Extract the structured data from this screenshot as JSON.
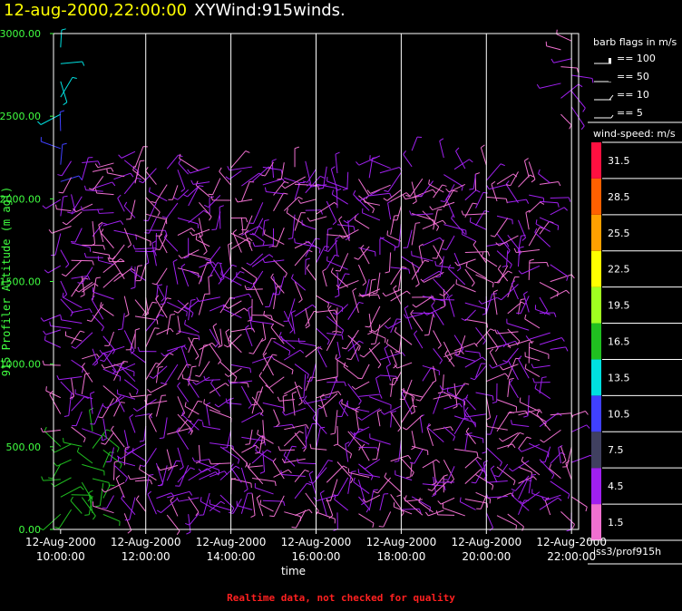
{
  "title": {
    "date": "12-aug-2000,22:00:00",
    "name": "XYWind:915winds."
  },
  "footer": "Realtime data, not checked for quality",
  "legend": {
    "barb_title": "barb flags in m/s",
    "barbs": [
      "== 100",
      "== 50",
      "== 10",
      "== 5"
    ],
    "speed_title": "wind-speed: m/s",
    "speed_labels": [
      "1.5",
      "4.5",
      "7.5",
      "10.5",
      "13.5",
      "16.5",
      "19.5",
      "22.5",
      "25.5",
      "28.5",
      "31.5"
    ],
    "speed_colors": [
      "#f070d0",
      "#a020f0",
      "#404060",
      "#4040ff",
      "#00e0e0",
      "#20c020",
      "#a0ff20",
      "#ffff00",
      "#ffa000",
      "#ff6000",
      "#ff1040"
    ],
    "source": "iss3/prof915h"
  },
  "chart_data": {
    "type": "scatter",
    "xlabel": "time",
    "ylabel": "915 Profiler Altitude (m agl)",
    "ylim": [
      0,
      3000
    ],
    "xlim": [
      "12-Aug-2000 09:50:00",
      "12-Aug-2000 22:10:00"
    ],
    "y_ticks": [
      "0.00",
      "500.00",
      "1000.00",
      "1500.00",
      "2000.00",
      "2500.00",
      "3000.00"
    ],
    "x_ticks": [
      {
        "date": "12-Aug-2000",
        "time": "10:00:00"
      },
      {
        "date": "12-Aug-2000",
        "time": "12:00:00"
      },
      {
        "date": "12-Aug-2000",
        "time": "14:00:00"
      },
      {
        "date": "12-Aug-2000",
        "time": "16:00:00"
      },
      {
        "date": "12-Aug-2000",
        "time": "18:00:00"
      },
      {
        "date": "12-Aug-2000",
        "time": "20:00:00"
      },
      {
        "date": "12-Aug-2000",
        "time": "22:00:00"
      }
    ],
    "grid": "vertical",
    "profile_times": [
      "10:00",
      "10:15",
      "10:30",
      "10:45",
      "11:00",
      "11:15",
      "11:30",
      "11:45",
      "12:00",
      "12:15",
      "12:30",
      "12:45",
      "13:00",
      "13:15",
      "13:30",
      "13:45",
      "14:00",
      "14:15",
      "14:30",
      "14:45",
      "15:00",
      "15:15",
      "15:30",
      "15:45",
      "16:00",
      "16:15",
      "16:30",
      "16:45",
      "17:00",
      "17:15",
      "17:30",
      "17:45",
      "18:00",
      "18:15",
      "18:30",
      "18:45",
      "19:00",
      "19:15",
      "19:30",
      "19:45",
      "20:00",
      "20:15",
      "20:30",
      "20:45",
      "21:00",
      "21:15",
      "21:30",
      "21:45",
      "22:00"
    ],
    "wind_barbs_approx": [
      {
        "time": "10:00",
        "altitude_range": [
          100,
          3000
        ],
        "speed_range": "1.5-13.5"
      },
      {
        "time": "11:00",
        "altitude_range": [
          200,
          2200
        ],
        "speed_range": "1.5-16.5"
      },
      {
        "time": "12:00-22:00",
        "altitude_range": [
          50,
          2250
        ],
        "speed_range": "1.5-7.5"
      }
    ]
  }
}
